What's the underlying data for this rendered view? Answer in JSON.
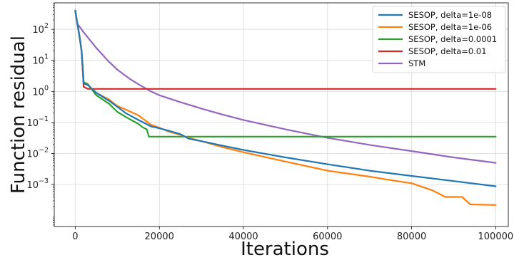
{
  "chart_data": {
    "type": "line",
    "title": "",
    "xlabel": "Iterations",
    "ylabel": "Function residual",
    "xlim": [
      -5000,
      103000
    ],
    "ylim_log10": [
      -4.35,
      2.85
    ],
    "y_scale": "log",
    "grid": true,
    "legend_position": "top-right",
    "x_ticks": [
      0,
      20000,
      40000,
      60000,
      80000,
      100000
    ],
    "x_tick_labels": [
      "0",
      "20000",
      "40000",
      "60000",
      "80000",
      "100000"
    ],
    "y_ticks_log10": [
      2,
      1,
      0,
      -1,
      -2,
      -3
    ],
    "y_tick_labels": [
      {
        "base": "10",
        "exp": "2"
      },
      {
        "base": "10",
        "exp": "1"
      },
      {
        "base": "10",
        "exp": "0"
      },
      {
        "base": "10",
        "exp": "−1"
      },
      {
        "base": "10",
        "exp": "−2"
      },
      {
        "base": "10",
        "exp": "−3"
      }
    ],
    "series": [
      {
        "name": "SESOP, delta=1e-08",
        "color": "#1f77b4",
        "x": [
          0,
          500,
          1000,
          1500,
          2000,
          3000,
          5000,
          8000,
          10000,
          12000,
          15000,
          18000,
          20000,
          22000,
          25000,
          27000,
          30000,
          35000,
          40000,
          50000,
          60000,
          70000,
          80000,
          90000,
          100000
        ],
        "y": [
          400,
          150,
          60,
          20,
          1.8,
          1.6,
          0.9,
          0.5,
          0.32,
          0.2,
          0.12,
          0.075,
          0.065,
          0.055,
          0.042,
          0.03,
          0.025,
          0.018,
          0.013,
          0.0075,
          0.0045,
          0.0028,
          0.0019,
          0.0013,
          0.00088
        ]
      },
      {
        "name": "SESOP, delta=1e-06",
        "color": "#ff7f0e",
        "x": [
          0,
          500,
          1000,
          1500,
          2000,
          3000,
          5000,
          8000,
          10000,
          12000,
          15000,
          18000,
          20000,
          22000,
          25000,
          27000,
          30000,
          35000,
          40000,
          50000,
          60000,
          70000,
          75000,
          80000,
          85000,
          88000,
          92000,
          94000,
          100000
        ],
        "y": [
          400,
          150,
          60,
          20,
          1.8,
          1.6,
          0.9,
          0.55,
          0.34,
          0.26,
          0.17,
          0.085,
          0.068,
          0.052,
          0.04,
          0.032,
          0.025,
          0.016,
          0.011,
          0.0055,
          0.0028,
          0.0018,
          0.0014,
          0.0011,
          0.00065,
          0.0004,
          0.0004,
          0.00023,
          0.00022
        ]
      },
      {
        "name": "SESOP, delta=0.0001",
        "color": "#2ca02c",
        "x": [
          0,
          500,
          1000,
          1500,
          2000,
          3000,
          5000,
          8000,
          10000,
          12000,
          15000,
          16000,
          17000,
          17500,
          18000,
          100000
        ],
        "y": [
          400,
          150,
          60,
          20,
          2.0,
          1.7,
          0.75,
          0.4,
          0.22,
          0.15,
          0.09,
          0.07,
          0.06,
          0.035,
          0.035,
          0.035
        ]
      },
      {
        "name": "SESOP, delta=0.01",
        "color": "#d62728",
        "x": [
          0,
          500,
          1000,
          1500,
          2000,
          3000,
          100000
        ],
        "y": [
          400,
          150,
          60,
          20,
          1.4,
          1.2,
          1.2
        ]
      },
      {
        "name": "STM",
        "color": "#9467bd",
        "x": [
          0,
          500,
          2000,
          5000,
          8000,
          10000,
          13000,
          15000,
          18000,
          20000,
          25000,
          30000,
          35000,
          40000,
          50000,
          60000,
          70000,
          80000,
          90000,
          100000
        ],
        "y": [
          400,
          150,
          80,
          25,
          9,
          5,
          2.5,
          1.7,
          1.0,
          0.75,
          0.45,
          0.28,
          0.18,
          0.12,
          0.06,
          0.032,
          0.019,
          0.012,
          0.0075,
          0.005
        ]
      }
    ]
  }
}
